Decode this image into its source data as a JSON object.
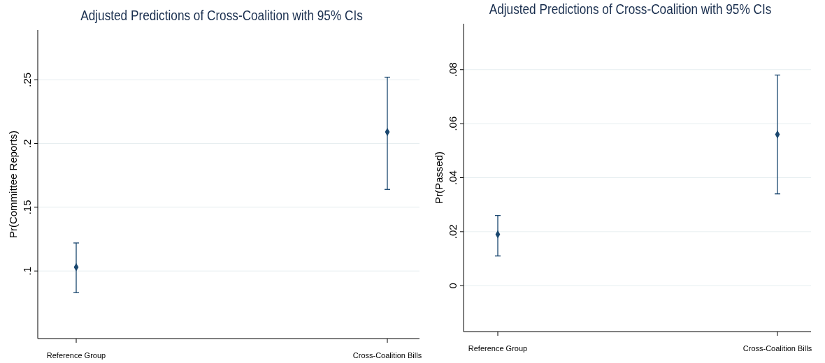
{
  "chart_data": [
    {
      "type": "scatter",
      "title": "Adjusted Predictions of Cross-Coalition with 95% CIs",
      "ylabel": "Pr(Committee Reports)",
      "categories": [
        "Reference Group",
        "Cross-Coalition Bills"
      ],
      "series": [
        {
          "color": "#1a476f",
          "values": [
            0.103,
            0.209
          ],
          "errors": [
            [
              0.083,
              0.122
            ],
            [
              0.164,
              0.252
            ]
          ]
        }
      ],
      "ylim": [
        0.047,
        0.289
      ],
      "yticks": [
        {
          "value": 0.1,
          "label": ".1"
        },
        {
          "value": 0.15,
          "label": ".15"
        },
        {
          "value": 0.2,
          "label": ".2"
        },
        {
          "value": 0.25,
          "label": ".25"
        }
      ],
      "grid": "y",
      "marker": "diamond"
    },
    {
      "type": "scatter",
      "title": "Adjusted Predictions of Cross-Coalition with 95% CIs",
      "ylabel": "Pr(Passed)",
      "categories": [
        "Reference Group",
        "Cross-Coalition Bills"
      ],
      "series": [
        {
          "color": "#1a476f",
          "values": [
            0.019,
            0.056
          ],
          "errors": [
            [
              0.011,
              0.026
            ],
            [
              0.034,
              0.078
            ]
          ]
        }
      ],
      "ylim": [
        -0.017,
        0.097
      ],
      "yticks": [
        0,
        {
          "value": 0.02,
          "label": ".02"
        },
        {
          "value": 0.04,
          "label": ".04"
        },
        {
          "value": 0.06,
          "label": ".06"
        },
        {
          "value": 0.08,
          "label": ".08"
        }
      ],
      "grid": "y",
      "marker": "diamond"
    }
  ]
}
